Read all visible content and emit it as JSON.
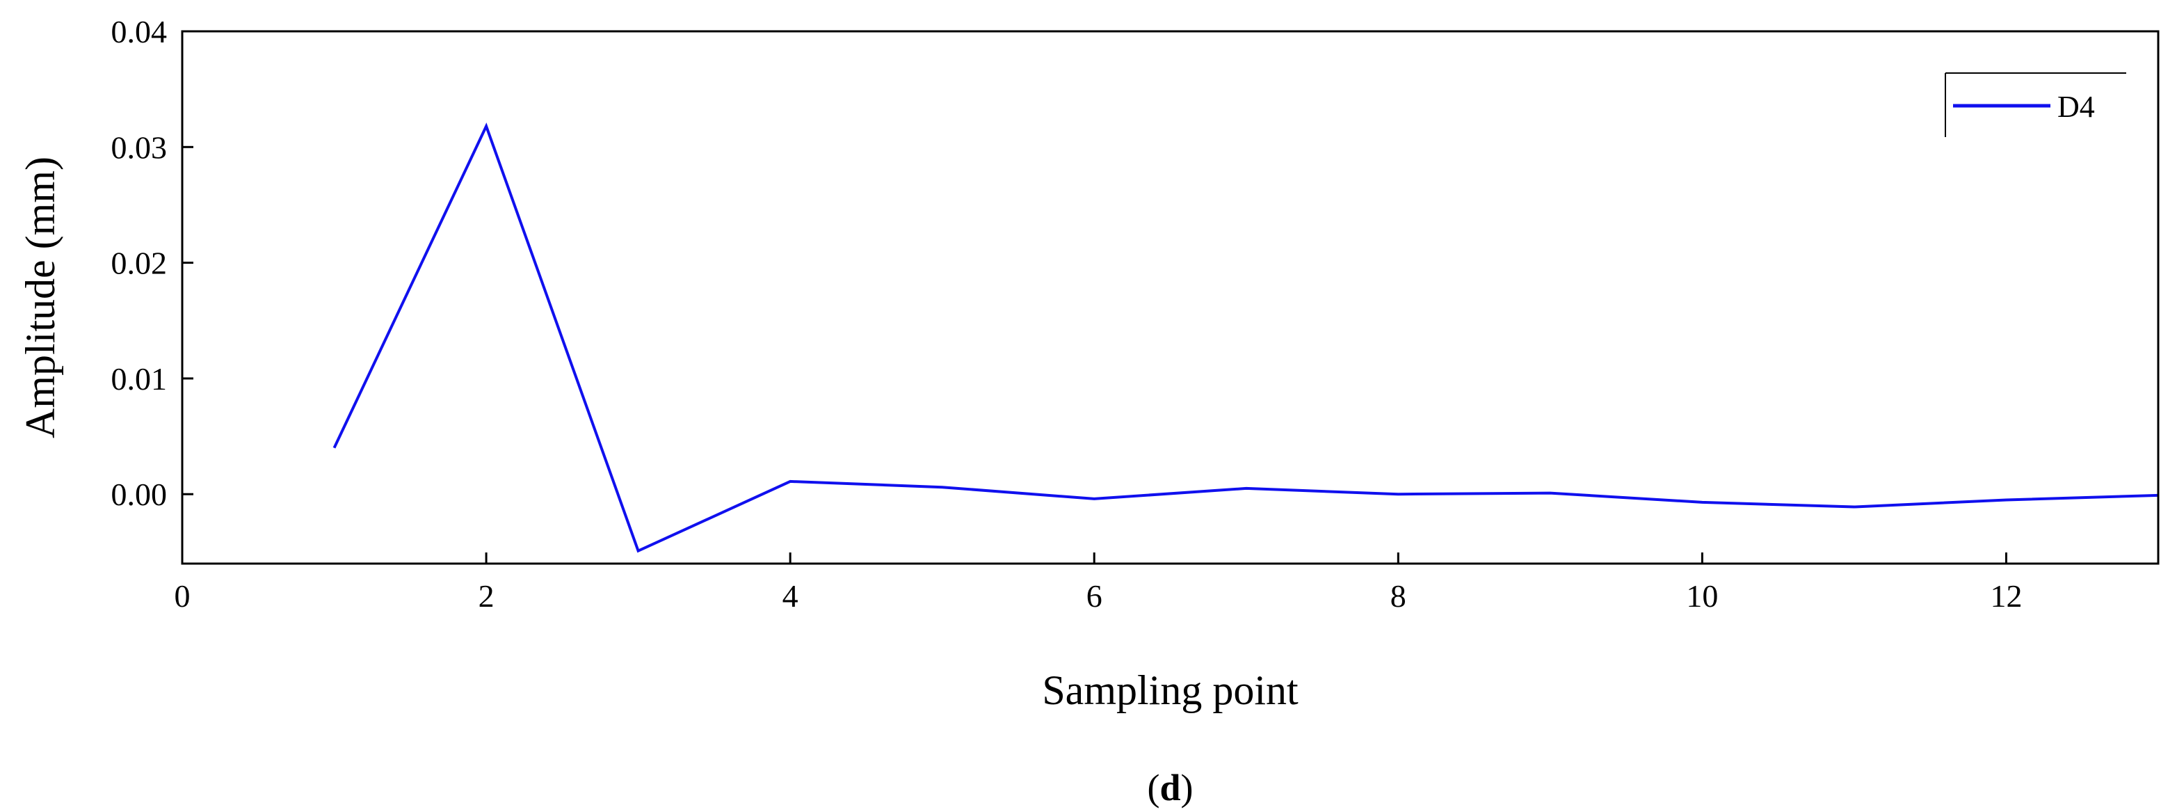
{
  "chart_data": {
    "type": "line",
    "xlabel": "Sampling point",
    "ylabel": "Amplitude (mm)",
    "panel_label": {
      "open": "(",
      "letter": "d",
      "close": ")"
    },
    "xlim": [
      0,
      13
    ],
    "ylim": [
      -0.006,
      0.04
    ],
    "x_ticks": [
      0,
      2,
      4,
      6,
      8,
      10,
      12
    ],
    "y_ticks": [
      0.0,
      0.01,
      0.02,
      0.03,
      0.04
    ],
    "y_tick_labels": [
      "0.00",
      "0.01",
      "0.02",
      "0.03",
      "0.04"
    ],
    "legend_position": "top-right",
    "grid": false,
    "series": [
      {
        "name": "D4",
        "color": "#1010ee",
        "x": [
          1,
          2,
          3,
          4,
          5,
          6,
          7,
          8,
          9,
          10,
          11,
          12,
          13
        ],
        "y": [
          0.004,
          0.0318,
          -0.0049,
          0.0011,
          0.0006,
          -0.0004,
          0.0005,
          0.0,
          0.0001,
          -0.0007,
          -0.0011,
          -0.0005,
          -0.0001
        ]
      }
    ]
  }
}
